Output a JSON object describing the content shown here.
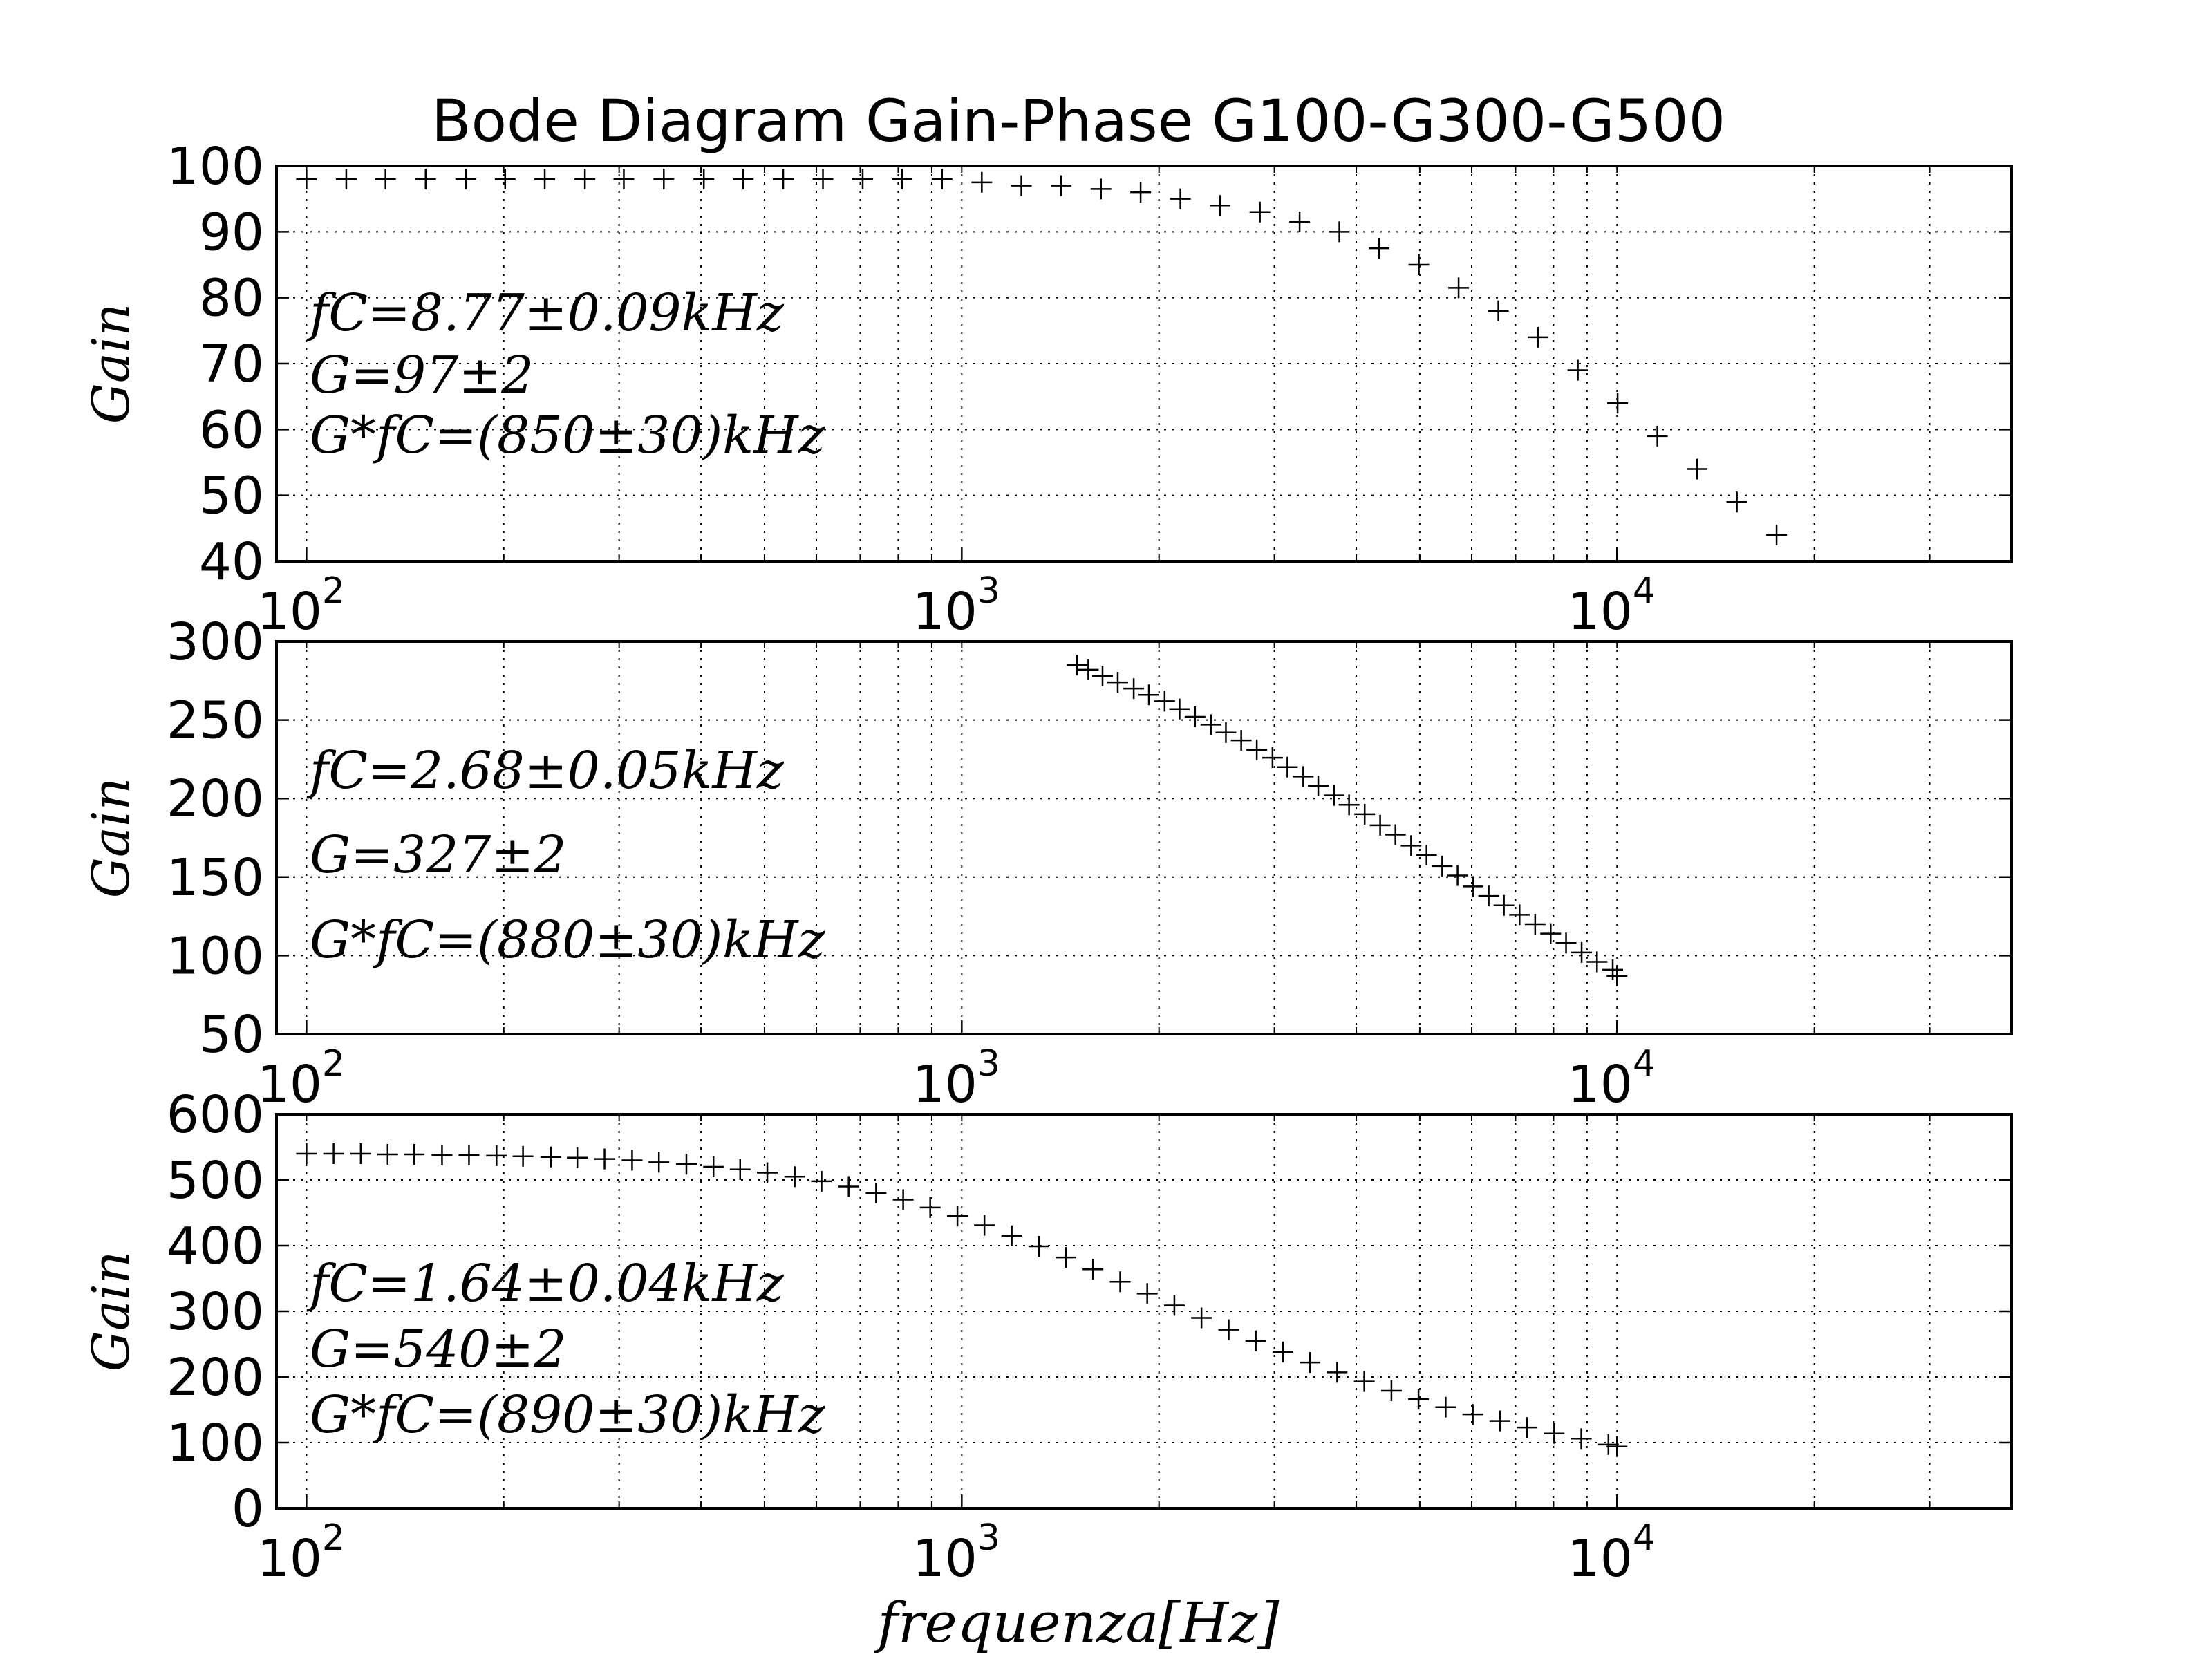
{
  "title": "Bode Diagram Gain-Phase G100-G300-G500",
  "xlabel": "frequenza[Hz]",
  "chart_data": [
    {
      "type": "scatter",
      "scale_x": "log",
      "grid": true,
      "marker": "+",
      "xlim": [
        90,
        40000
      ],
      "ylim": [
        40,
        100
      ],
      "yticks": [
        "100",
        "90",
        "80",
        "70",
        "60",
        "50",
        "40"
      ],
      "ytick_values": [
        100,
        90,
        80,
        70,
        60,
        50,
        40
      ],
      "xticks": [
        {
          "base": "10",
          "exp": "2",
          "value": 100
        },
        {
          "base": "10",
          "exp": "3",
          "value": 1000
        },
        {
          "base": "10",
          "exp": "4",
          "value": 10000
        }
      ],
      "ylabel": "Gain",
      "annotations": [
        "fC=8.77±0.09kHz",
        "G=97±2",
        "G*fC=(850±30)kHz"
      ],
      "series": [
        {
          "x": [
            100,
            115,
            132,
            152,
            175,
            201,
            231,
            266,
            305,
            351,
            404,
            464,
            534,
            614,
            706,
            811,
            933,
            1073,
            1233,
            1418,
            1631,
            1875,
            2156,
            2479,
            2851,
            3278,
            3769,
            4334,
            4984,
            5731,
            6590,
            7578,
            8714,
            10020,
            11522,
            13249,
            15235,
            17518
          ],
          "y": [
            98,
            98,
            98,
            98,
            98,
            98,
            98,
            98,
            98,
            98,
            98,
            98,
            98,
            98,
            98,
            98,
            98,
            97.5,
            97,
            97,
            96.5,
            96,
            95,
            94,
            93,
            91.5,
            90,
            87.5,
            85,
            81.5,
            78,
            74,
            69,
            64,
            59,
            54,
            49,
            44
          ]
        }
      ]
    },
    {
      "type": "scatter",
      "scale_x": "log",
      "grid": true,
      "marker": "+",
      "xlim": [
        90,
        40000
      ],
      "ylim": [
        50,
        300
      ],
      "yticks": [
        "300",
        "250",
        "200",
        "150",
        "100",
        "50"
      ],
      "ytick_values": [
        300,
        250,
        200,
        150,
        100,
        50
      ],
      "xticks": [
        {
          "base": "10",
          "exp": "2",
          "value": 100
        },
        {
          "base": "10",
          "exp": "3",
          "value": 1000
        },
        {
          "base": "10",
          "exp": "4",
          "value": 10000
        }
      ],
      "ylabel": "Gain",
      "annotations": [
        "fC=2.68±0.05kHz",
        "G=327±2",
        "G*fC=(880±30)kHz"
      ],
      "series": [
        {
          "x": [
            1500,
            1560,
            1640,
            1730,
            1830,
            1930,
            2040,
            2150,
            2270,
            2400,
            2530,
            2670,
            2820,
            2980,
            3140,
            3320,
            3500,
            3700,
            3900,
            4120,
            4350,
            4590,
            4850,
            5120,
            5410,
            5710,
            6030,
            6370,
            6720,
            7100,
            7500,
            7920,
            8360,
            8830,
            9320,
            9850,
            10000
          ],
          "y": [
            285,
            282,
            278,
            274,
            270,
            266,
            262,
            257,
            252,
            247,
            242,
            237,
            231,
            226,
            220,
            214,
            208,
            202,
            196,
            190,
            183,
            177,
            170,
            164,
            157,
            151,
            144,
            138,
            132,
            126,
            120,
            114,
            108,
            102,
            96,
            91,
            87
          ]
        }
      ]
    },
    {
      "type": "scatter",
      "scale_x": "log",
      "grid": true,
      "marker": "+",
      "xlim": [
        90,
        40000
      ],
      "ylim": [
        0,
        600
      ],
      "yticks": [
        "600",
        "500",
        "400",
        "300",
        "200",
        "100",
        "0"
      ],
      "ytick_values": [
        600,
        500,
        400,
        300,
        200,
        100,
        0
      ],
      "xticks": [
        {
          "base": "10",
          "exp": "2",
          "value": 100
        },
        {
          "base": "10",
          "exp": "3",
          "value": 1000
        },
        {
          "base": "10",
          "exp": "4",
          "value": 10000
        }
      ],
      "ylabel": "Gain",
      "annotations": [
        "fC=1.64±0.04kHz",
        "G=540±2",
        "G*fC=(890±30)kHz"
      ],
      "series": [
        {
          "x": [
            100,
            110,
            121,
            133,
            146,
            161,
            177,
            195,
            214,
            236,
            259,
            285,
            314,
            345,
            380,
            418,
            459,
            505,
            556,
            611,
            672,
            740,
            814,
            895,
            985,
            1083,
            1192,
            1311,
            1442,
            1586,
            1745,
            1919,
            2111,
            2322,
            2555,
            2810,
            3091,
            3400,
            3740,
            4114,
            4526,
            4978,
            5476,
            6024,
            6626,
            7289,
            8018,
            8820,
            9702,
            10000
          ],
          "y": [
            540,
            540,
            540,
            539,
            539,
            538,
            538,
            537,
            536,
            535,
            534,
            532,
            530,
            527,
            524,
            520,
            516,
            511,
            505,
            498,
            490,
            480,
            470,
            458,
            445,
            431,
            415,
            399,
            382,
            364,
            345,
            327,
            309,
            290,
            272,
            255,
            238,
            222,
            207,
            193,
            179,
            166,
            154,
            143,
            133,
            123,
            114,
            106,
            97,
            94
          ]
        }
      ]
    }
  ]
}
